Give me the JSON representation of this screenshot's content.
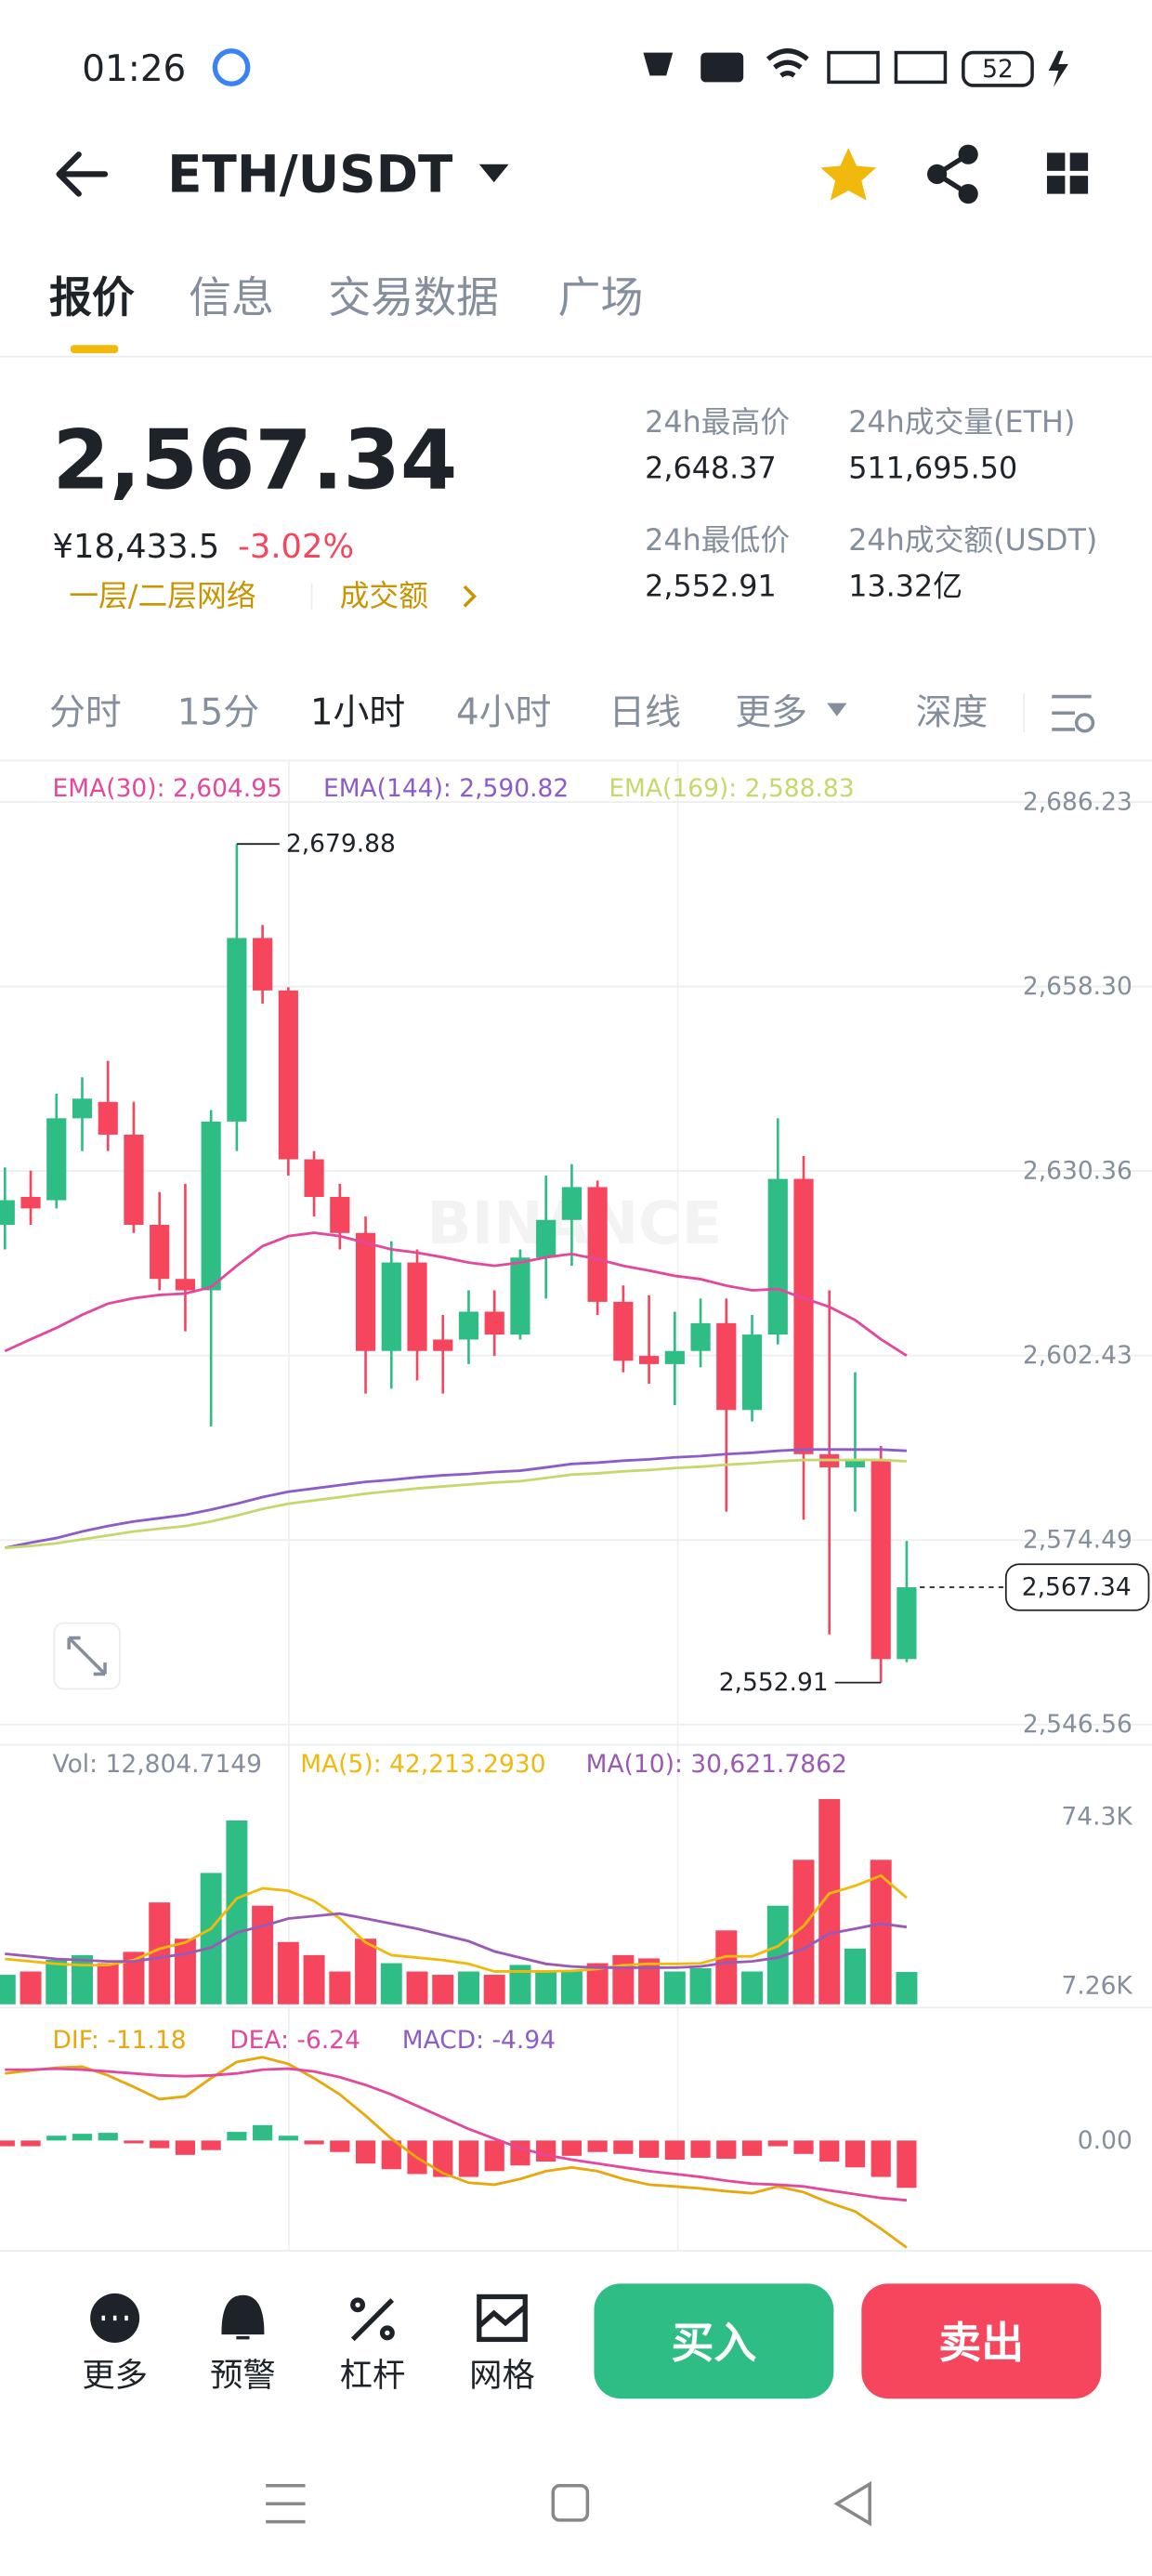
{
  "status_bar": {
    "time": "01:26",
    "battery": "52"
  },
  "header": {
    "pair": "ETH/USDT"
  },
  "tabs": [
    "报价",
    "信息",
    "交易数据",
    "广场"
  ],
  "ticker": {
    "last": "2,567.34",
    "cny": "¥18,433.5",
    "change": "-3.02%",
    "tags": [
      "一层/二层网络",
      "成交额"
    ],
    "stats": [
      {
        "label": "24h最高价",
        "value": "2,648.37"
      },
      {
        "label": "24h成交量(ETH)",
        "value": "511,695.50"
      },
      {
        "label": "24h最低价",
        "value": "2,552.91"
      },
      {
        "label": "24h成交额(USDT)",
        "value": "13.32亿"
      }
    ]
  },
  "intervals": [
    "分时",
    "15分",
    "1小时",
    "4小时",
    "日线",
    "更多",
    "深度"
  ],
  "chart_data": [
    {
      "type": "candlestick",
      "up_color": "#2ebd85",
      "down_color": "#f6465d",
      "grid": true,
      "watermark": "BINANCE",
      "open": [
        2622.22,
        2626.44,
        2625.94,
        2638.35,
        2640.83,
        2635.87,
        2622.22,
        2614.03,
        2612.3,
        2637.85,
        2665.64,
        2657.7,
        2632.14,
        2626.44,
        2620.98,
        2603.12,
        2616.51,
        2604.85,
        2604.85,
        2609.07,
        2605.6,
        2617.26,
        2622.96,
        2627.93,
        2610.56,
        2602.37,
        2601.13,
        2603.12,
        2607.33,
        2594.18,
        2605.6,
        2629.17,
        2587.49,
        2585.5,
        2586.74,
        2556.47
      ],
      "high": [
        2630.9,
        2630.41,
        2642.07,
        2644.55,
        2647.03,
        2640.83,
        2627.18,
        2628.42,
        2639.59,
        2679.88,
        2667.62,
        2658.19,
        2633.38,
        2628.42,
        2623.46,
        2619.74,
        2618.5,
        2608.57,
        2612.3,
        2612.3,
        2618.5,
        2629.66,
        2631.4,
        2628.92,
        2613.04,
        2611.55,
        2609.07,
        2611.06,
        2611.06,
        2608.57,
        2638.35,
        2632.64,
        2612.3,
        2599.89,
        2588.73,
        2574.34
      ],
      "low": [
        2618.5,
        2622.22,
        2624.7,
        2633.38,
        2633.38,
        2620.98,
        2612.3,
        2606.09,
        2591.7,
        2633.38,
        2655.71,
        2629.66,
        2623.46,
        2618.5,
        2596.67,
        2597.41,
        2598.65,
        2596.67,
        2601.13,
        2602.37,
        2604.85,
        2611.06,
        2616.02,
        2608.57,
        2599.89,
        2598.15,
        2594.93,
        2600.64,
        2578.8,
        2592.45,
        2604.11,
        2577.56,
        2560.2,
        2578.8,
        2552.91,
        2555.98
      ],
      "close": [
        2625.94,
        2624.7,
        2638.35,
        2641.32,
        2635.87,
        2622.22,
        2614.03,
        2612.3,
        2637.85,
        2665.64,
        2657.7,
        2632.14,
        2626.44,
        2620.98,
        2603.12,
        2616.51,
        2603.12,
        2603.12,
        2609.07,
        2605.6,
        2617.26,
        2622.96,
        2627.93,
        2610.56,
        2601.63,
        2601.13,
        2603.12,
        2607.33,
        2594.18,
        2605.6,
        2629.17,
        2587.49,
        2585.5,
        2586.74,
        2556.47,
        2567.34
      ],
      "ylim": [
        2544,
        2692
      ],
      "yticks": [
        {
          "value": 2686.23,
          "label": "2,686.23"
        },
        {
          "value": 2658.3,
          "label": "2,658.30"
        },
        {
          "value": 2630.36,
          "label": "2,630.36"
        },
        {
          "value": 2602.43,
          "label": "2,602.43"
        },
        {
          "value": 2574.49,
          "label": "2,574.49"
        },
        {
          "value": 2546.56,
          "label": "2,546.56"
        }
      ],
      "high_label": "2,679.88",
      "low_label": "2,552.91",
      "last_label": "2,567.34",
      "series": [
        {
          "name": "EMA(30): 2,604.95",
          "color": "#e2489c",
          "values": [
            2603.1,
            2604.9,
            2606.6,
            2608.6,
            2610.3,
            2611.1,
            2611.6,
            2611.8,
            2612.8,
            2616.0,
            2619.0,
            2620.5,
            2621.0,
            2620.5,
            2619.5,
            2618.5,
            2618.0,
            2617.3,
            2616.5,
            2616.0,
            2616.5,
            2617.3,
            2617.8,
            2617.0,
            2616.0,
            2615.3,
            2614.5,
            2614.0,
            2613.0,
            2612.3,
            2612.5,
            2611.1,
            2609.8,
            2607.8,
            2604.9,
            2602.4
          ]
        },
        {
          "name": "EMA(144): 2,590.82",
          "color": "#8e5cc8",
          "values": [
            2573.3,
            2574.1,
            2574.8,
            2575.8,
            2576.6,
            2577.3,
            2577.8,
            2578.3,
            2579.1,
            2580.0,
            2581.0,
            2581.8,
            2582.3,
            2582.8,
            2583.3,
            2583.6,
            2584.0,
            2584.3,
            2584.5,
            2584.8,
            2585.0,
            2585.5,
            2586.0,
            2586.2,
            2586.5,
            2586.7,
            2587.0,
            2587.2,
            2587.5,
            2587.7,
            2588.0,
            2588.2,
            2588.2,
            2588.2,
            2588.2,
            2588.0
          ]
        },
        {
          "name": "EMA(169): 2,588.83",
          "color": "#c5d86d",
          "values": [
            2573.3,
            2573.6,
            2574.0,
            2574.6,
            2575.2,
            2575.8,
            2576.2,
            2576.6,
            2577.3,
            2578.2,
            2579.2,
            2580.0,
            2580.5,
            2581.0,
            2581.5,
            2581.9,
            2582.3,
            2582.6,
            2582.9,
            2583.2,
            2583.4,
            2583.9,
            2584.4,
            2584.6,
            2584.9,
            2585.1,
            2585.4,
            2585.6,
            2585.9,
            2586.1,
            2586.4,
            2586.6,
            2586.6,
            2586.6,
            2586.6,
            2586.4
          ]
        }
      ]
    },
    {
      "type": "bar",
      "legend": "Vol: 12,804.7149",
      "values": [
        11700,
        13000,
        17600,
        19500,
        16300,
        20800,
        40400,
        26000,
        52100,
        72900,
        39100,
        24700,
        19500,
        13000,
        26000,
        16300,
        13000,
        11700,
        13000,
        11700,
        15600,
        13000,
        13000,
        16300,
        19500,
        18200,
        13000,
        14300,
        29300,
        13000,
        39100,
        57300,
        81400,
        22100,
        57300,
        12804.7149
      ],
      "ylim": [
        0,
        101000
      ],
      "yticks": [
        {
          "value": 74300,
          "label": "74.3K"
        },
        {
          "value": 7260,
          "label": "7.26K"
        }
      ],
      "series": [
        {
          "name": "MA(5): 42,213.2930",
          "color": "#f0b90b",
          "values": [
            18000,
            17000,
            16000,
            15500,
            15600,
            17500,
            22000,
            24500,
            30000,
            42000,
            46000,
            45000,
            41000,
            34000,
            24500,
            19500,
            18500,
            17500,
            16000,
            13000,
            13000,
            13000,
            13200,
            14000,
            15500,
            16000,
            16000,
            16200,
            19000,
            19000,
            23000,
            31000,
            44000,
            47000,
            51000,
            42213.293
          ]
        },
        {
          "name": "MA(10): 30,621.7862",
          "color": "#9b59b6",
          "values": [
            20000,
            19000,
            18000,
            17500,
            17000,
            17000,
            18500,
            20000,
            22500,
            28500,
            31000,
            34000,
            35000,
            36000,
            34000,
            32000,
            30000,
            27500,
            25000,
            21000,
            18500,
            16000,
            15000,
            14500,
            14500,
            14500,
            14500,
            15000,
            16500,
            17000,
            18500,
            22000,
            28000,
            30000,
            32000,
            30621.7862
          ]
        }
      ]
    },
    {
      "type": "macd",
      "hist_name": "MACD: -4.94",
      "hist_color": "#8e5cc8",
      "values": [
        -0.6,
        -0.6,
        0.5,
        0.7,
        0.8,
        -0.3,
        -0.8,
        -1.5,
        -1.0,
        0.9,
        1.6,
        0.5,
        -0.4,
        -1.2,
        -2.4,
        -3.0,
        -3.5,
        -3.8,
        -3.8,
        -3.2,
        -2.6,
        -2.2,
        -1.6,
        -1.2,
        -1.4,
        -1.8,
        -2.0,
        -1.8,
        -1.9,
        -1.6,
        -0.6,
        -1.4,
        -2.2,
        -2.8,
        -3.8,
        -4.94
      ],
      "ylim": [
        -11.5,
        12.5
      ],
      "yticks": [
        {
          "value": 0,
          "label": "0.00"
        }
      ],
      "series": [
        {
          "name": "DIF: -11.18",
          "color": "#e8a70c",
          "values": [
            7.0,
            7.3,
            7.6,
            7.7,
            6.8,
            5.6,
            4.3,
            4.6,
            6.5,
            8.2,
            8.7,
            8.0,
            6.5,
            4.8,
            2.6,
            0.2,
            -1.8,
            -3.4,
            -4.4,
            -4.6,
            -4.0,
            -3.2,
            -2.8,
            -3.2,
            -4.0,
            -4.6,
            -4.8,
            -5.0,
            -5.3,
            -5.5,
            -4.8,
            -5.4,
            -6.5,
            -7.4,
            -9.2,
            -11.18
          ]
        },
        {
          "name": "DEA: -6.24",
          "color": "#e2489c",
          "values": [
            7.4,
            7.4,
            7.5,
            7.4,
            7.2,
            7.0,
            6.8,
            6.7,
            6.8,
            7.0,
            7.4,
            7.5,
            7.2,
            6.6,
            5.8,
            4.8,
            3.6,
            2.4,
            1.2,
            0.2,
            -0.8,
            -1.5,
            -2.0,
            -2.4,
            -2.8,
            -3.2,
            -3.5,
            -3.8,
            -4.2,
            -4.5,
            -4.6,
            -4.8,
            -5.2,
            -5.6,
            -6.0,
            -6.24
          ]
        }
      ]
    }
  ],
  "bottom_bar": {
    "actions": [
      "更多",
      "预警",
      "杠杆",
      "网格"
    ],
    "buy": "买入",
    "sell": "卖出"
  }
}
